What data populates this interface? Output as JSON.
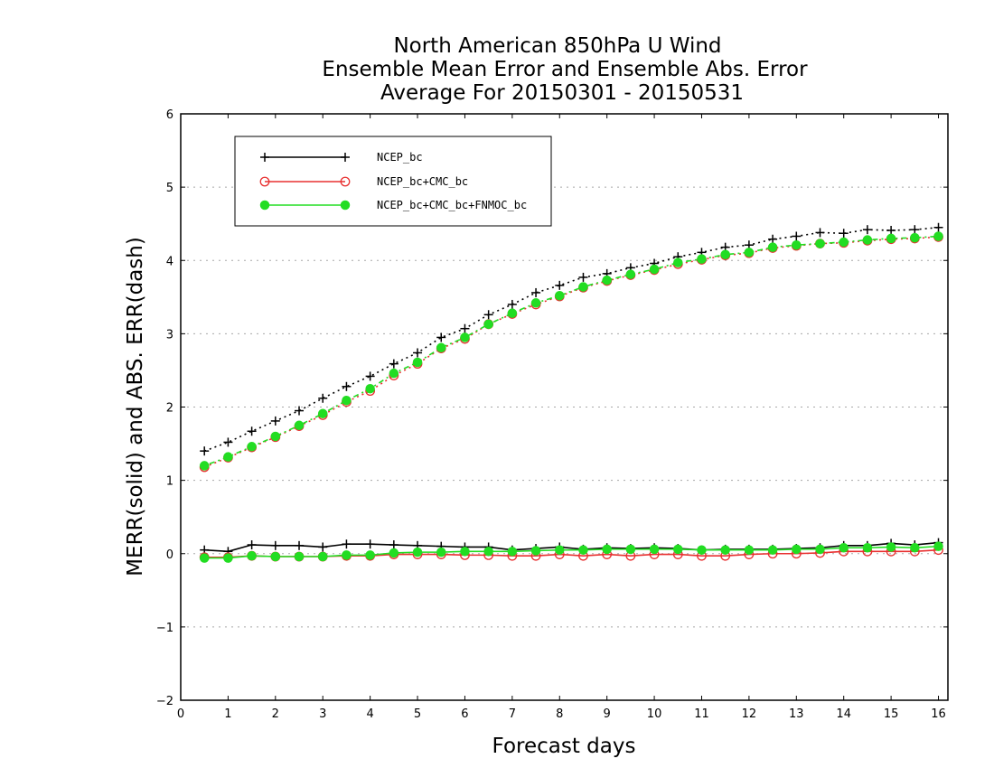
{
  "chart_data": {
    "type": "line",
    "title_lines": [
      "North American 850hPa U Wind",
      "Ensemble Mean Error and Ensemble Abs. Error",
      "Average For 20150301 - 20150531"
    ],
    "xlabel": "Forecast days",
    "ylabel": "MERR(solid) and ABS. ERR(dash)",
    "xlim": [
      0,
      16.2
    ],
    "ylim": [
      -2,
      6
    ],
    "xticks": [
      0,
      1,
      2,
      3,
      4,
      5,
      6,
      7,
      8,
      9,
      10,
      11,
      12,
      13,
      14,
      15,
      16
    ],
    "yticks": [
      -2,
      -1,
      0,
      1,
      2,
      3,
      4,
      5,
      6
    ],
    "grid": "horizontal dotted",
    "legend_position": "top-left",
    "x": [
      0.5,
      1,
      1.5,
      2,
      2.5,
      3,
      3.5,
      4,
      4.5,
      5,
      5.5,
      6,
      6.5,
      7,
      7.5,
      8,
      8.5,
      9,
      9.5,
      10,
      10.5,
      11,
      11.5,
      12,
      12.5,
      13,
      13.5,
      14,
      14.5,
      15,
      15.5,
      16
    ],
    "series": [
      {
        "name": "NCEP_bc",
        "color": "#000000",
        "marker": "plus",
        "merr": [
          0.05,
          0.03,
          0.12,
          0.11,
          0.11,
          0.09,
          0.13,
          0.13,
          0.12,
          0.11,
          0.1,
          0.09,
          0.09,
          0.05,
          0.07,
          0.09,
          0.06,
          0.08,
          0.07,
          0.08,
          0.07,
          0.05,
          0.06,
          0.06,
          0.06,
          0.07,
          0.08,
          0.11,
          0.11,
          0.14,
          0.12,
          0.15
        ],
        "abs_err": [
          1.4,
          1.52,
          1.67,
          1.81,
          1.95,
          2.12,
          2.28,
          2.42,
          2.59,
          2.74,
          2.95,
          3.07,
          3.26,
          3.4,
          3.56,
          3.66,
          3.77,
          3.82,
          3.9,
          3.96,
          4.05,
          4.11,
          4.18,
          4.21,
          4.29,
          4.33,
          4.38,
          4.37,
          4.42,
          4.41,
          4.42,
          4.45
        ]
      },
      {
        "name": "NCEP_bc+CMC_bc",
        "color": "#e83030",
        "marker": "open-circle",
        "merr": [
          -0.05,
          -0.05,
          -0.03,
          -0.04,
          -0.04,
          -0.04,
          -0.03,
          -0.03,
          -0.01,
          -0.01,
          -0.01,
          -0.02,
          -0.02,
          -0.03,
          -0.03,
          -0.01,
          -0.03,
          -0.01,
          -0.03,
          -0.01,
          -0.01,
          -0.03,
          -0.03,
          -0.01,
          0.0,
          0.0,
          0.01,
          0.03,
          0.03,
          0.03,
          0.03,
          0.05
        ],
        "abs_err": [
          1.18,
          1.31,
          1.45,
          1.59,
          1.74,
          1.89,
          2.07,
          2.22,
          2.43,
          2.59,
          2.8,
          2.93,
          3.13,
          3.27,
          3.4,
          3.51,
          3.63,
          3.72,
          3.8,
          3.87,
          3.95,
          4.01,
          4.07,
          4.1,
          4.17,
          4.2,
          4.23,
          4.24,
          4.27,
          4.29,
          4.3,
          4.32
        ]
      },
      {
        "name": "NCEP_bc+CMC_bc+FNMOC_bc",
        "color": "#22dd22",
        "marker": "filled-circle",
        "merr": [
          -0.06,
          -0.06,
          -0.03,
          -0.04,
          -0.04,
          -0.04,
          -0.02,
          -0.02,
          0.01,
          0.02,
          0.02,
          0.03,
          0.03,
          0.03,
          0.04,
          0.05,
          0.05,
          0.06,
          0.06,
          0.06,
          0.06,
          0.05,
          0.05,
          0.05,
          0.05,
          0.06,
          0.06,
          0.08,
          0.08,
          0.09,
          0.08,
          0.1
        ],
        "abs_err": [
          1.2,
          1.32,
          1.46,
          1.6,
          1.75,
          1.91,
          2.09,
          2.25,
          2.46,
          2.61,
          2.81,
          2.95,
          3.13,
          3.28,
          3.42,
          3.52,
          3.64,
          3.73,
          3.81,
          3.88,
          3.97,
          4.02,
          4.08,
          4.11,
          4.18,
          4.21,
          4.23,
          4.25,
          4.28,
          4.3,
          4.31,
          4.33
        ]
      }
    ]
  }
}
